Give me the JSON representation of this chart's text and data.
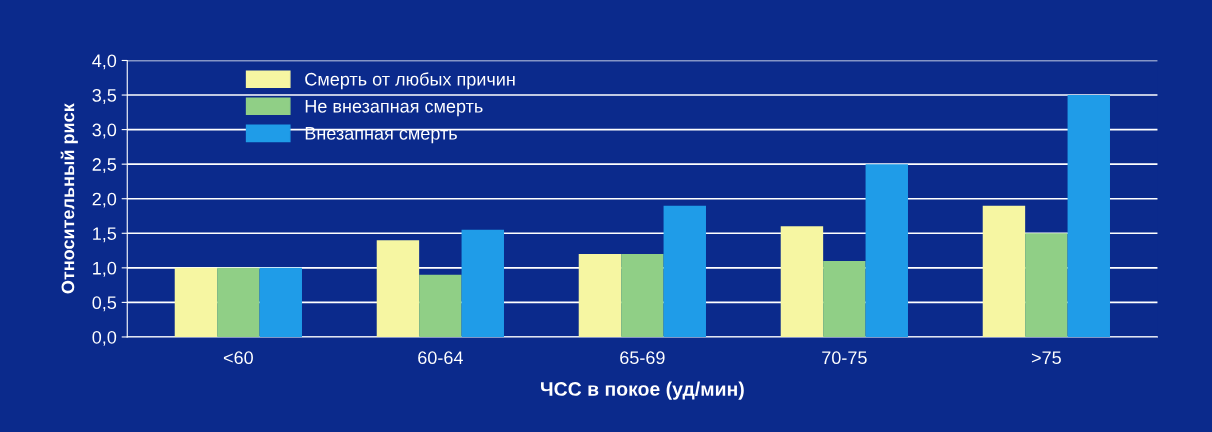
{
  "chart_data": {
    "type": "bar",
    "xlabel": "ЧСС в покое (уд/мин)",
    "ylabel": "Относительный риск",
    "categories": [
      "<60",
      "60-64",
      "65-69",
      "70-75",
      ">75"
    ],
    "series": [
      {
        "name": "Смерть от любых причин",
        "color": "#f6f6a2",
        "values": [
          1.0,
          1.4,
          1.2,
          1.6,
          1.9
        ]
      },
      {
        "name": "Не внезапная смерть",
        "color": "#90cf86",
        "values": [
          1.0,
          0.9,
          1.2,
          1.1,
          1.5
        ]
      },
      {
        "name": "Внезапная смерть",
        "color": "#1f9ce8",
        "values": [
          1.0,
          1.55,
          1.9,
          2.5,
          3.5
        ]
      }
    ],
    "ylim": [
      0,
      4
    ],
    "yticks": [
      {
        "value": 0,
        "label": "0,0"
      },
      {
        "value": 0.5,
        "label": "0,5"
      },
      {
        "value": 1,
        "label": "1,0"
      },
      {
        "value": 1.5,
        "label": "1,5"
      },
      {
        "value": 2,
        "label": "2,0"
      },
      {
        "value": 2.5,
        "label": "2,5"
      },
      {
        "value": 3,
        "label": "3,0"
      },
      {
        "value": 3.5,
        "label": "3,5"
      },
      {
        "value": 4,
        "label": "4,0"
      }
    ],
    "grid": "y",
    "legend": "top left"
  }
}
